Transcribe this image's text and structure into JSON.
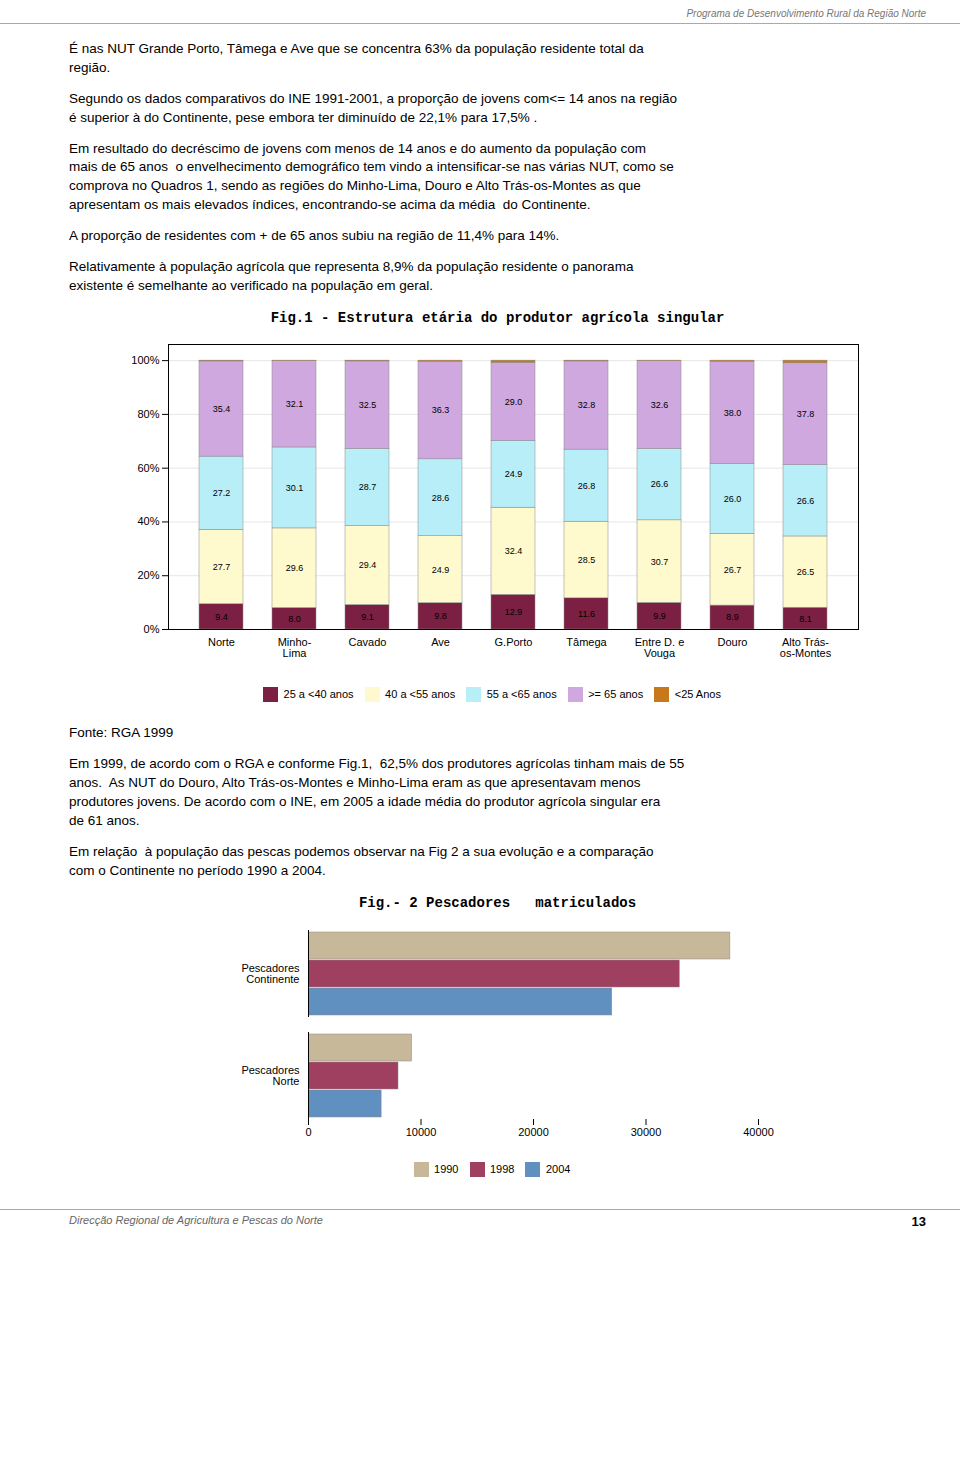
{
  "header": "Programa de Desenvolvimento Rural da Região Norte",
  "footer": "Direcção Regional de Agricultura e Pescas do Norte",
  "page_number": "13",
  "chart_data": [
    {
      "type": "bar",
      "stacked": true,
      "title": "Fig.1 - Estrutura etária do produtor agrícola singular",
      "annotations_before": [
        "É nas NUT Grande Porto, Tâmega e Ave que se concentra 63% da população residente total da\nregião.",
        "Segundo os dados comparativos do INE 1991-2001, a proporção de jovens com<= 14 anos na região\né superior à do Continente, pese embora ter diminuído de 22,1% para 17,5% .",
        "Em resultado do decréscimo de jovens com menos de 14 anos e do aumento da população com\nmais de 65 anos  o envelhecimento demográfico tem vindo a intensificar-se nas várias NUT, como se\ncomprova no Quadros 1, sendo as regiões do Minho-Lima, Douro e Alto Trás-os-Montes as que\napresentam os mais elevados índices, encontrando-se acima da média  do Continente.",
        "A proporção de residentes com + de 65 anos subiu na região de 11,4% para 14%.",
        "Relativamente à população agrícola que representa 8,9% da população residente o panorama\nexistente é semelhante ao verificado na população em geral."
      ],
      "annotations_after": [
        "Fonte: RGA 1999",
        "Em 1999, de acordo com o RGA e conforme Fig.1,  62,5% dos produtores agrícolas tinham mais de 55\nanos.  As NUT do Douro, Alto Trás-os-Montes e Minho-Lima eram as que apresentavam menos\nprodutores jovens. De acordo com o INE, em 2005 a idade média do produtor agrícola singular era\nde 61 anos."
      ],
      "categories": [
        "Norte",
        "Minho-\nLima",
        "Cavado",
        "Ave",
        "G.Porto",
        "Tâmega",
        "Entre D. e\nVouga",
        "Douro",
        "Alto Trás-\nos-Montes"
      ],
      "series": [
        {
          "name": "25 a <40 anos",
          "color": "#7B2042",
          "values": [
            9.4,
            8.0,
            9.1,
            9.8,
            12.9,
            11.6,
            9.9,
            8.9,
            8.1
          ],
          "data_labels": true,
          "value_labels": [
            "9.4",
            "8.0",
            "9.1",
            "9.8",
            "12.9",
            "11.6",
            "9.9",
            "8.9",
            "8.1"
          ]
        },
        {
          "name": "40 a <55 anos",
          "color": "#FFFACD",
          "values": [
            27.7,
            29.6,
            29.4,
            24.9,
            32.4,
            28.5,
            30.7,
            26.7,
            26.5
          ],
          "data_labels": true,
          "value_labels": [
            "27.7",
            "29.6",
            "29.4",
            "24.9",
            "32.4",
            "28.5",
            "30.7",
            "26.7",
            "26.5"
          ]
        },
        {
          "name": "55 a <65 anos",
          "color": "#B8EEF8",
          "values": [
            27.2,
            30.1,
            28.7,
            28.6,
            24.9,
            26.8,
            26.6,
            26.0,
            26.6
          ],
          "data_labels": true,
          "value_labels": [
            "27.2",
            "30.1",
            "28.7",
            "28.6",
            "24.9",
            "26.8",
            "26.6",
            "26.0",
            "26.6"
          ]
        },
        {
          "name": ">= 65 anos",
          "color": "#D0A8E0",
          "values": [
            35.4,
            32.1,
            32.5,
            36.3,
            29.0,
            32.8,
            32.6,
            38.0,
            37.8
          ],
          "data_labels": true,
          "value_labels": [
            "35.4",
            "32.1",
            "32.5",
            "36.3",
            "29.0",
            "32.8",
            "32.6",
            "38.0",
            "37.8"
          ]
        },
        {
          "name": "<25 Anos",
          "color": "#C87818",
          "values": [
            0.3,
            0.2,
            0.3,
            0.4,
            0.8,
            0.3,
            0.2,
            0.4,
            1.0
          ],
          "data_labels": false
        }
      ],
      "ylim": [
        0,
        106
      ],
      "yticks": [
        {
          "value": 0,
          "label": "0%"
        },
        {
          "value": 20,
          "label": "20%"
        },
        {
          "value": 40,
          "label": "40%"
        },
        {
          "value": 60,
          "label": "60%"
        },
        {
          "value": 80,
          "label": "80%"
        },
        {
          "value": 100,
          "label": "100%"
        }
      ],
      "grid": true,
      "legend": "bottom"
    },
    {
      "type": "bar",
      "orientation": "horizontal",
      "title": "Fig.- 2 Pescadores   matriculados",
      "annotations_before": [
        "Em relação  à população das pescas podemos observar na Fig 2 a sua evolução e a comparação\ncom o Continente no período 1990 a 2004."
      ],
      "categories": [
        "Pescadores\nContinente",
        "Pescadores\nNorte"
      ],
      "series": [
        {
          "name": "1990",
          "color": "#C8B89A",
          "values": [
            37500,
            9200
          ]
        },
        {
          "name": "1998",
          "color": "#A04060",
          "values": [
            33000,
            8000
          ]
        },
        {
          "name": "2004",
          "color": "#6090C0",
          "values": [
            27000,
            6500
          ]
        }
      ],
      "xlim": [
        0,
        40000
      ],
      "xticks": [
        0,
        10000,
        20000,
        30000,
        40000
      ],
      "grid": false,
      "legend": "bottom"
    }
  ]
}
